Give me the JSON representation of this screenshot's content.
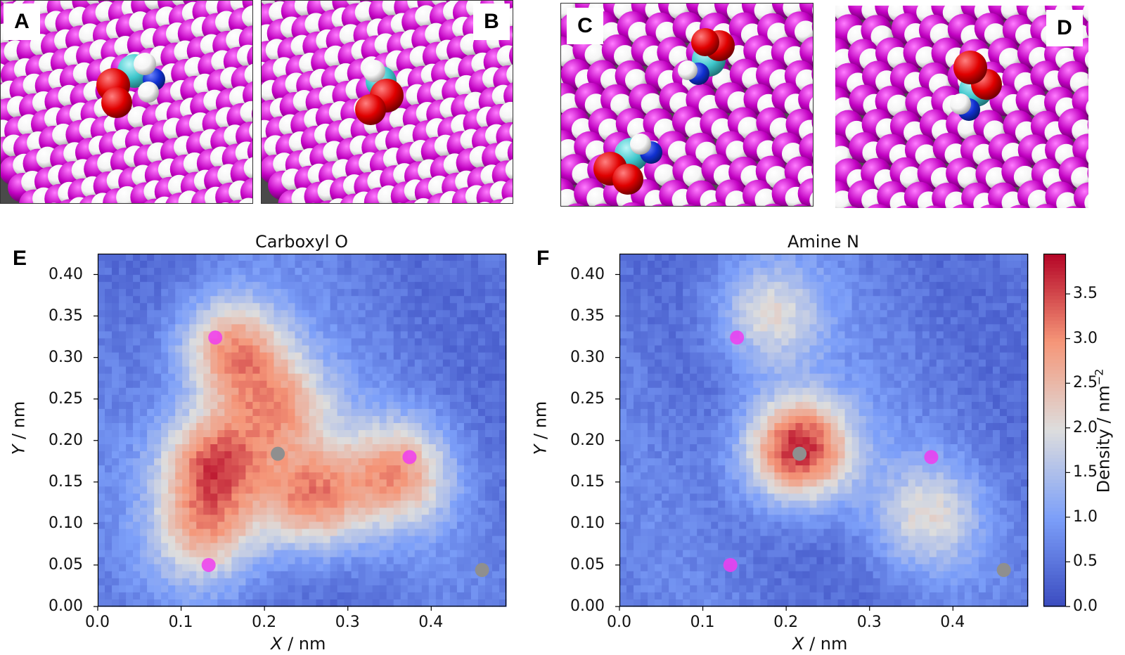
{
  "snapshots": [
    {
      "letter": "A"
    },
    {
      "letter": "B"
    },
    {
      "letter": "C"
    },
    {
      "letter": "D"
    }
  ],
  "colors": {
    "surface_atom": "#c100c1",
    "hydrogen": "#f4f4f4",
    "carbon": "#3fc7cc",
    "oxygen": "#e00000",
    "nitrogen": "#1030d0",
    "magenta_marker": "#f03cf0",
    "gray_marker": "#8f8f8f",
    "cmap_low": "#3b4cc0",
    "cmap_mid": "#dddddd",
    "cmap_high": "#b40426"
  },
  "chart_data": [
    {
      "type": "heatmap",
      "panel": "E",
      "title": "Carboxyl O",
      "xlabel_var": "X",
      "xlabel_unit": " / nm",
      "ylabel_var": "Y",
      "ylabel_unit": " / nm",
      "xlim": [
        0.0,
        0.49
      ],
      "ylim": [
        0.0,
        0.425
      ],
      "xticks": [
        "0.0",
        "0.1",
        "0.2",
        "0.3",
        "0.4"
      ],
      "yticks": [
        "0.00",
        "0.05",
        "0.10",
        "0.15",
        "0.20",
        "0.25",
        "0.30",
        "0.35",
        "0.40"
      ],
      "density_peaks": [
        {
          "x": 0.16,
          "y": 0.31,
          "density": 2.9
        },
        {
          "x": 0.14,
          "y": 0.175,
          "density": 3.2
        },
        {
          "x": 0.255,
          "y": 0.13,
          "density": 3.0
        },
        {
          "x": 0.36,
          "y": 0.16,
          "density": 2.7
        },
        {
          "x": 0.22,
          "y": 0.24,
          "density": 2.5
        },
        {
          "x": 0.13,
          "y": 0.09,
          "density": 2.5
        }
      ],
      "markers": [
        {
          "x": 0.141,
          "y": 0.324,
          "color": "magenta"
        },
        {
          "x": 0.374,
          "y": 0.18,
          "color": "magenta"
        },
        {
          "x": 0.133,
          "y": 0.05,
          "color": "magenta"
        },
        {
          "x": 0.216,
          "y": 0.184,
          "color": "gray"
        },
        {
          "x": 0.461,
          "y": 0.044,
          "color": "gray"
        }
      ]
    },
    {
      "type": "heatmap",
      "panel": "F",
      "title": "Amine N",
      "xlabel_var": "X",
      "xlabel_unit": " / nm",
      "ylabel_var": "Y",
      "ylabel_unit": " / nm",
      "xlim": [
        0.0,
        0.49
      ],
      "ylim": [
        0.0,
        0.425
      ],
      "xticks": [
        "0.0",
        "0.1",
        "0.2",
        "0.3",
        "0.4"
      ],
      "yticks": [
        "0.00",
        "0.05",
        "0.10",
        "0.15",
        "0.20",
        "0.25",
        "0.30",
        "0.35",
        "0.40"
      ],
      "density_peaks": [
        {
          "x": 0.215,
          "y": 0.19,
          "density": 3.9
        },
        {
          "x": 0.18,
          "y": 0.35,
          "density": 2.0
        },
        {
          "x": 0.37,
          "y": 0.11,
          "density": 1.9
        }
      ],
      "markers": [
        {
          "x": 0.141,
          "y": 0.324,
          "color": "magenta"
        },
        {
          "x": 0.374,
          "y": 0.18,
          "color": "magenta"
        },
        {
          "x": 0.133,
          "y": 0.05,
          "color": "magenta"
        },
        {
          "x": 0.216,
          "y": 0.184,
          "color": "gray"
        },
        {
          "x": 0.461,
          "y": 0.044,
          "color": "gray"
        }
      ],
      "colorbar": {
        "label": "Density / nm",
        "label_sup": "−2",
        "range": [
          0.0,
          3.95
        ],
        "ticks": [
          "0.0",
          "0.5",
          "1.0",
          "1.5",
          "2.0",
          "2.5",
          "3.0",
          "3.5"
        ]
      }
    }
  ]
}
